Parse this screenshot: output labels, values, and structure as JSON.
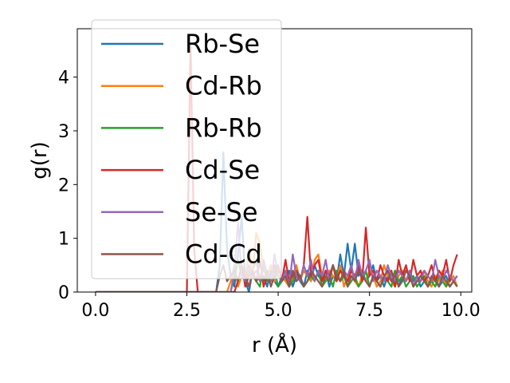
{
  "chart_data": {
    "type": "line",
    "xlabel": "r (Å)",
    "ylabel": "g(r)",
    "xlim": [
      -0.5,
      10.3
    ],
    "ylim": [
      0,
      4.9
    ],
    "xticks": [
      0.0,
      2.5,
      5.0,
      7.5,
      10.0
    ],
    "xtick_labels": [
      "0.0",
      "2.5",
      "5.0",
      "7.5",
      "10.0"
    ],
    "yticks": [
      0,
      1,
      2,
      3,
      4
    ],
    "ytick_labels": [
      "0",
      "1",
      "2",
      "3",
      "4"
    ],
    "grid": false,
    "legend_position": "upper-left",
    "x": [
      0.0,
      0.1,
      0.2,
      0.3,
      0.4,
      0.5,
      0.6,
      0.7,
      0.8,
      0.9,
      1.0,
      1.1,
      1.2,
      1.3,
      1.4,
      1.5,
      1.6,
      1.7,
      1.8,
      1.9,
      2.0,
      2.1,
      2.2,
      2.3,
      2.4,
      2.5,
      2.6,
      2.7,
      2.8,
      2.9,
      3.0,
      3.1,
      3.2,
      3.3,
      3.4,
      3.5,
      3.6,
      3.7,
      3.8,
      3.9,
      4.0,
      4.1,
      4.2,
      4.3,
      4.4,
      4.5,
      4.6,
      4.7,
      4.8,
      4.9,
      5.0,
      5.1,
      5.2,
      5.3,
      5.4,
      5.5,
      5.6,
      5.7,
      5.8,
      5.9,
      6.0,
      6.1,
      6.2,
      6.3,
      6.4,
      6.5,
      6.6,
      6.7,
      6.8,
      6.9,
      7.0,
      7.1,
      7.2,
      7.3,
      7.4,
      7.5,
      7.6,
      7.7,
      7.8,
      7.9,
      8.0,
      8.1,
      8.2,
      8.3,
      8.4,
      8.5,
      8.6,
      8.7,
      8.8,
      8.9,
      9.0,
      9.1,
      9.2,
      9.3,
      9.4,
      9.5,
      9.6,
      9.7,
      9.8,
      9.9
    ],
    "series": [
      {
        "name": "Rb-Se",
        "color": "#1f77b4",
        "values": [
          0,
          0,
          0,
          0,
          0,
          0,
          0,
          0,
          0,
          0,
          0,
          0,
          0,
          0,
          0,
          0,
          0,
          0,
          0,
          0,
          0,
          0,
          0,
          0,
          0,
          0,
          0,
          0,
          0,
          0,
          0,
          0,
          0,
          0,
          0.5,
          2.6,
          0.8,
          0.3,
          0.1,
          0.7,
          1.4,
          0.2,
          0,
          0.4,
          0.6,
          0.2,
          0.3,
          0.1,
          0.4,
          0.2,
          0.1,
          0.3,
          0.2,
          0.4,
          0.1,
          0.3,
          0.2,
          0.1,
          0.4,
          0.2,
          0.5,
          0.3,
          0.2,
          0.4,
          0.1,
          0.3,
          0.2,
          0.7,
          0.3,
          0.9,
          0.4,
          0.9,
          0.3,
          0.4,
          0.2,
          0.3,
          0.5,
          0.2,
          0.3,
          0.1,
          0.3,
          0.2,
          0.4,
          0.1,
          0.3,
          0.2,
          0.4,
          0.2,
          0.3,
          0.1,
          0.2,
          0.3,
          0.2,
          0.3,
          0.1,
          0.2,
          0.3,
          0.1,
          0.2,
          0.3
        ]
      },
      {
        "name": "Cd-Rb",
        "color": "#ff7f0e",
        "values": [
          0,
          0,
          0,
          0,
          0,
          0,
          0,
          0,
          0,
          0,
          0,
          0,
          0,
          0,
          0,
          0,
          0,
          0,
          0,
          0,
          0,
          0,
          0,
          0,
          0,
          0,
          0,
          0,
          0,
          0,
          0,
          0,
          0,
          0,
          0,
          0,
          0,
          0.2,
          0.5,
          0.1,
          0.3,
          0.2,
          0.8,
          0.3,
          1.1,
          0.9,
          0.4,
          0.3,
          0.5,
          0.2,
          0.4,
          0.3,
          0.2,
          0.1,
          0.3,
          0.5,
          0.2,
          0.4,
          0.3,
          0.2,
          0.6,
          0.7,
          0.3,
          0.2,
          0.4,
          0.3,
          0.2,
          0.5,
          0.1,
          0.3,
          0.4,
          0.2,
          0.1,
          0.3,
          0.2,
          0.4,
          0.3,
          0.1,
          0.2,
          0.5,
          0.3,
          0.2,
          0.1,
          0.3,
          0.4,
          0.2,
          0.3,
          0.1,
          0.2,
          0.3,
          0.4,
          0.2,
          0.1,
          0.3,
          0.2,
          0.4,
          0.1,
          0.2,
          0.3,
          0.1
        ]
      },
      {
        "name": "Rb-Rb",
        "color": "#2ca02c",
        "values": [
          0,
          0,
          0,
          0,
          0,
          0,
          0,
          0,
          0,
          0,
          0,
          0,
          0,
          0,
          0,
          0,
          0,
          0,
          0,
          0,
          0,
          0,
          0,
          0,
          0,
          0,
          0,
          0,
          0,
          0,
          0,
          0,
          0,
          0,
          0,
          0,
          0,
          0,
          0.3,
          0.6,
          0.3,
          0.2,
          0.4,
          0.3,
          0.2,
          0.1,
          0.5,
          0.2,
          0.3,
          0.4,
          0.1,
          0.2,
          0.3,
          0.1,
          0.2,
          0.4,
          0.3,
          0.1,
          0.2,
          0.3,
          0.2,
          0.4,
          0.1,
          0.2,
          0.3,
          0.1,
          0.4,
          0.2,
          0.3,
          0.1,
          0.2,
          0.3,
          0.1,
          0.2,
          0.4,
          0.1,
          0.3,
          0.2,
          0.1,
          0.3,
          0.2,
          0.1,
          0.4,
          0.2,
          0.3,
          0.1,
          0.2,
          0.3,
          0.1,
          0.2,
          0.3,
          0.1,
          0.2,
          0.1,
          0.3,
          0.2,
          0.1,
          0.3,
          0.2,
          0.1
        ]
      },
      {
        "name": "Cd-Se",
        "color": "#d62728",
        "values": [
          0,
          0,
          0,
          0,
          0,
          0,
          0,
          0,
          0,
          0,
          0,
          0,
          0,
          0,
          0,
          0,
          0,
          0,
          0,
          0,
          0,
          0,
          0,
          0,
          0,
          0,
          4.6,
          0.8,
          0,
          0,
          0,
          0,
          0,
          0,
          0,
          0,
          0,
          0,
          0,
          0.2,
          0.5,
          0.1,
          0.3,
          0.4,
          0.2,
          0.6,
          0.1,
          0.3,
          0.2,
          0.5,
          0.3,
          0.2,
          0.6,
          0.2,
          0.3,
          0.4,
          0.2,
          0.5,
          1.4,
          0.3,
          0.5,
          0.6,
          0.2,
          0.4,
          0.3,
          0.5,
          0.2,
          0.4,
          0.3,
          0.2,
          0.4,
          0.3,
          0.5,
          0.2,
          1.2,
          0.3,
          0.4,
          0.2,
          0.5,
          0.3,
          0.2,
          0.4,
          0.1,
          0.6,
          0.3,
          0.5,
          0.2,
          0.6,
          0.3,
          0.4,
          0.2,
          0.3,
          0.5,
          0.2,
          0.4,
          0.3,
          0.6,
          0.2,
          0.5,
          0.7
        ]
      },
      {
        "name": "Se-Se",
        "color": "#9467bd",
        "values": [
          0,
          0,
          0,
          0,
          0,
          0,
          0,
          0,
          0,
          0,
          0,
          0,
          0,
          0,
          0,
          0,
          0,
          0,
          0,
          0,
          0,
          0,
          0,
          0,
          0,
          0,
          0,
          0,
          0,
          0,
          0,
          0,
          0,
          0,
          0,
          0,
          0,
          0,
          0.4,
          1.3,
          0.3,
          0.2,
          0.5,
          0.3,
          0.4,
          0.2,
          0.6,
          0.3,
          0.2,
          0.7,
          0.3,
          0.2,
          0.4,
          0.1,
          0.7,
          0.3,
          0.2,
          0.5,
          0.3,
          0.6,
          0.2,
          0.4,
          0.3,
          0.6,
          0.2,
          0.5,
          0.3,
          0.2,
          0.4,
          0.3,
          0.5,
          0.2,
          0.6,
          0.3,
          0.4,
          0.6,
          0.2,
          0.4,
          0.3,
          0.2,
          0.5,
          0.3,
          0.2,
          0.4,
          0.3,
          0.2,
          0.4,
          0.1,
          0.3,
          0.2,
          0.4,
          0.3,
          0.2,
          0.6,
          0.3,
          0.2,
          0.4,
          0.3,
          0.2,
          0.3
        ]
      },
      {
        "name": "Cd-Cd",
        "color": "#8c564b",
        "values": [
          0,
          0,
          0,
          0,
          0,
          0,
          0,
          0,
          0,
          0,
          0,
          0,
          0,
          0,
          0,
          0,
          0,
          0,
          0,
          0,
          0,
          0,
          0,
          0,
          0,
          0,
          0,
          0,
          0,
          0,
          0,
          0,
          0,
          0,
          0.3,
          0.5,
          0.2,
          0.3,
          0.4,
          0.2,
          0.5,
          0.3,
          0.1,
          0.4,
          0.2,
          0.3,
          0.2,
          0.4,
          0.1,
          0.3,
          0.5,
          0.2,
          0.3,
          0.1,
          0.4,
          0.2,
          0.3,
          0.1,
          0.2,
          0.4,
          0.3,
          0.2,
          0.1,
          0.3,
          0.2,
          0.5,
          0.3,
          0.2,
          0.4,
          0.1,
          0.3,
          0.2,
          0.4,
          0.3,
          0.2,
          0.1,
          0.3,
          0.2,
          0.1,
          0.3,
          0.4,
          0.2,
          0.3,
          0.1,
          0.2,
          0.4,
          0.3,
          0.1,
          0.2,
          0.3,
          0.2,
          0.1,
          0.3,
          0.2,
          0.1,
          0.3,
          0.2,
          0.1,
          0.2,
          0.1
        ]
      }
    ]
  }
}
